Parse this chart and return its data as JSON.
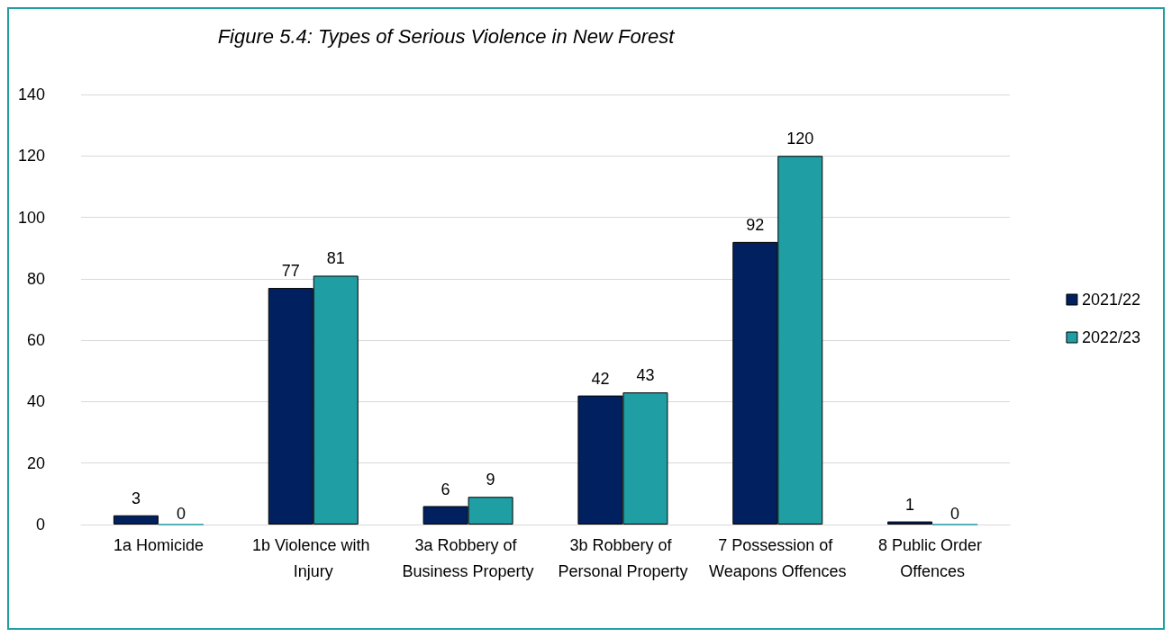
{
  "chart_data": {
    "type": "bar",
    "title": "Figure 5.4: Types of Serious Violence in New Forest",
    "categories": [
      "1a Homicide",
      "1b Violence with Injury",
      "3a Robbery of Business Property",
      "3b Robbery of Personal Property",
      "7 Possession of Weapons Offences",
      "8 Public Order Offences"
    ],
    "series": [
      {
        "name": "2021/22",
        "color": "#002060",
        "values": [
          3,
          77,
          6,
          42,
          92,
          1
        ]
      },
      {
        "name": "2022/23",
        "color": "#1f9ea3",
        "values": [
          0,
          81,
          9,
          43,
          120,
          0
        ]
      }
    ],
    "ylim": [
      0,
      140
    ],
    "yticks": [
      0,
      20,
      40,
      60,
      80,
      100,
      120,
      140
    ],
    "grid": "y",
    "legend": "right",
    "data_labels": true
  }
}
